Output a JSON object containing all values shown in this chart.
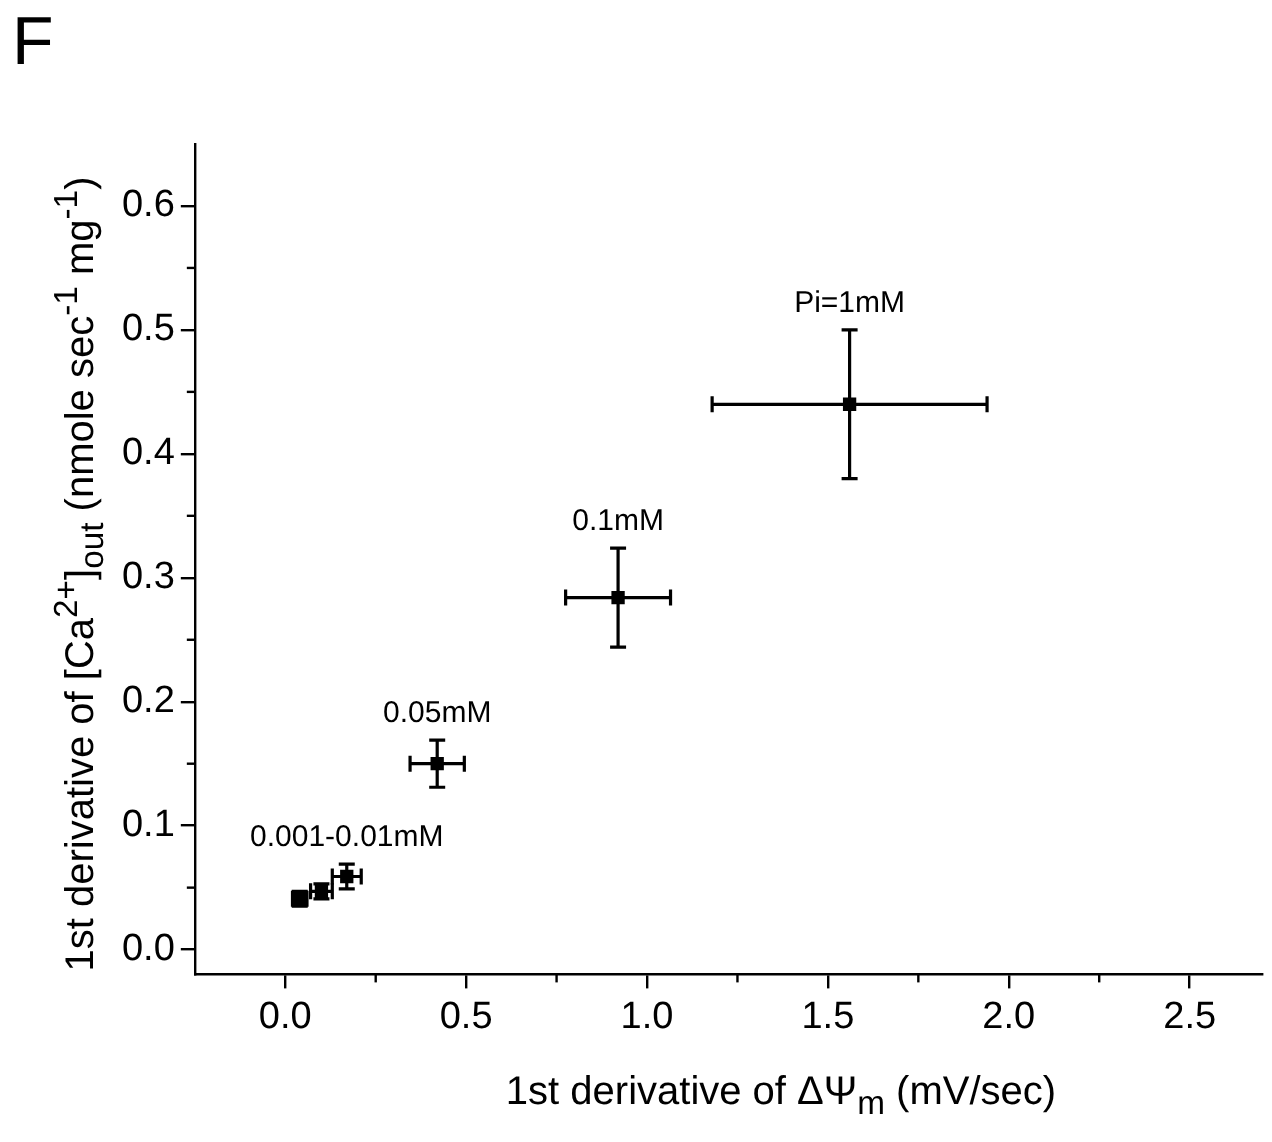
{
  "chart_data": {
    "type": "scatter",
    "title": "F",
    "xlabel": "1st derivative of ΔΨ$_{m}$ (mV/sec)",
    "ylabel": "1st derivative of [Ca$^{2+}$]$_{out}$ (nmole sec$^{-1}$ mg$^{-1}$)",
    "x": [
      0.04,
      0.1,
      0.17,
      0.42,
      0.92,
      1.56
    ],
    "series": [
      {
        "color": "#000000",
        "values": [
          0.041,
          0.047,
          0.059,
          0.15,
          0.284,
          0.44
        ],
        "errors": [
          0.006,
          0.006,
          0.01,
          0.019,
          0.04,
          0.06
        ],
        "xerrors": [
          0.02,
          0.03,
          0.04,
          0.075,
          0.145,
          0.38
        ]
      }
    ],
    "xlim": [
      -0.25,
      2.7
    ],
    "xticks": [
      {
        "value": 0,
        "label": "0.0"
      },
      {
        "value": 0.5,
        "label": "0.5"
      },
      {
        "value": 1,
        "label": "1.0"
      },
      {
        "value": 1.5,
        "label": "1.5"
      },
      {
        "value": 2,
        "label": "2.0"
      },
      {
        "value": 2.5,
        "label": "2.5"
      }
    ],
    "ylim": [
      -0.02,
      0.65
    ],
    "yticks": [
      {
        "value": 0,
        "label": "0.0"
      },
      {
        "value": 0.1,
        "label": "0.1"
      },
      {
        "value": 0.2,
        "label": "0.2"
      },
      {
        "value": 0.3,
        "label": "0.3"
      },
      {
        "value": 0.4,
        "label": "0.4"
      },
      {
        "value": 0.5,
        "label": "0.5"
      },
      {
        "value": 0.6,
        "label": "0.6"
      }
    ],
    "grid": false,
    "legend": false,
    "marker": "square",
    "annotations": [
      {
        "text": "Pi=1mM",
        "x": 1.56,
        "y": 0.44
      },
      {
        "text": "0.1mM",
        "x": 0.92,
        "y": 0.284
      },
      {
        "text": "0.05mM",
        "x": 0.42,
        "y": 0.15
      },
      {
        "text": "0.001-0.01mM",
        "x": 0.17,
        "y": 0.059
      }
    ]
  }
}
